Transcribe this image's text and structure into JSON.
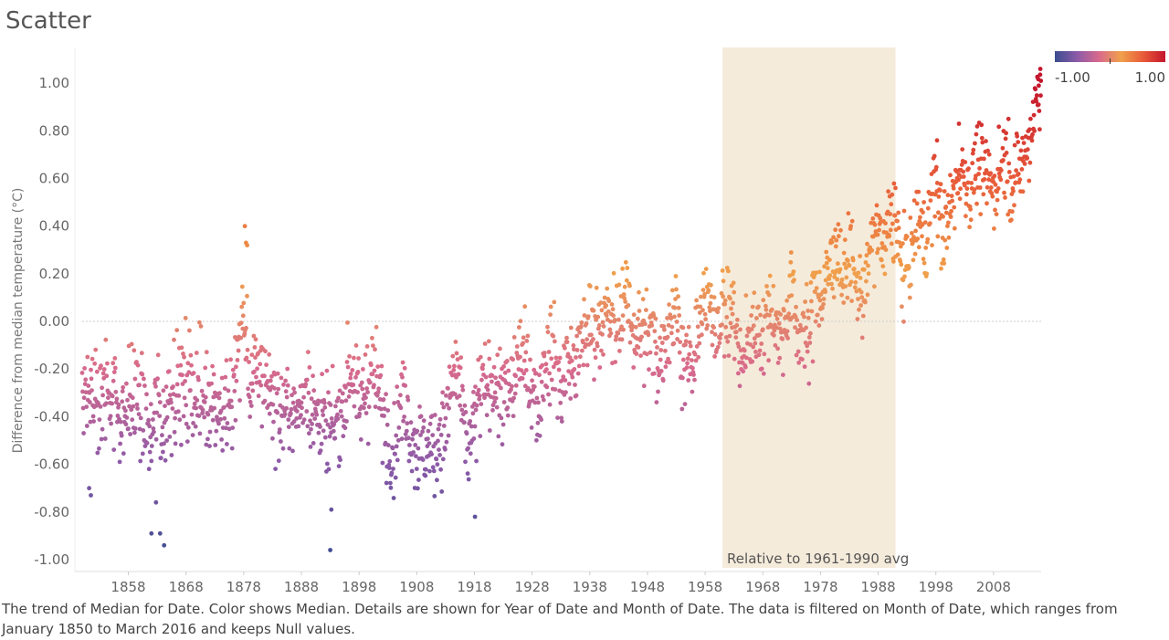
{
  "page": {
    "title": "Scatter",
    "caption": "The trend of Median for Date.  Color shows Median.  Details are shown for Year of Date and Month of Date. The data is filtered on Month of Date, which ranges from January 1850 to March 2016 and keeps Null values."
  },
  "chart_data": {
    "type": "scatter",
    "ylabel": "Difference from median temperature (°C)",
    "xlabel": "",
    "x_range": [
      1850.0,
      2016.25
    ],
    "ylim": [
      -1.05,
      1.15
    ],
    "y_ticks": [
      -1.0,
      -0.8,
      -0.6,
      -0.4,
      -0.2,
      0.0,
      0.2,
      0.4,
      0.6,
      0.8,
      1.0
    ],
    "y_tick_labels": [
      "-1.00",
      "-0.80",
      "-0.60",
      "-0.40",
      "-0.20",
      "0.00",
      "0.20",
      "0.40",
      "0.60",
      "0.80",
      "1.00"
    ],
    "x_ticks": [
      1858,
      1868,
      1878,
      1888,
      1898,
      1908,
      1918,
      1928,
      1938,
      1948,
      1958,
      1968,
      1978,
      1988,
      1998,
      2008
    ],
    "x_tick_labels": [
      "1858",
      "1868",
      "1878",
      "1888",
      "1898",
      "1908",
      "1918",
      "1928",
      "1938",
      "1948",
      "1958",
      "1968",
      "1978",
      "1988",
      "1998",
      "2008"
    ],
    "reference_line_y": 0.0,
    "reference_band": {
      "x_start": 1961,
      "x_end": 1991,
      "label": "Relative to 1961-1990 avg",
      "color": "#f5ebdb"
    },
    "legend": {
      "type": "color-gradient",
      "min_label": "-1.00",
      "max_label": "1.00",
      "colors": [
        "#3b4d8f",
        "#8c5aa8",
        "#d86a8c",
        "#f0a04b",
        "#e85a3a",
        "#c4152c"
      ],
      "placement": "top-right"
    },
    "color_field": "Median",
    "grid": false,
    "annual_trend": [
      [
        1850,
        -0.38
      ],
      [
        1851,
        -0.25
      ],
      [
        1852,
        -0.26
      ],
      [
        1853,
        -0.3
      ],
      [
        1854,
        -0.27
      ],
      [
        1855,
        -0.28
      ],
      [
        1856,
        -0.33
      ],
      [
        1857,
        -0.42
      ],
      [
        1858,
        -0.36
      ],
      [
        1859,
        -0.3
      ],
      [
        1860,
        -0.35
      ],
      [
        1861,
        -0.42
      ],
      [
        1862,
        -0.52
      ],
      [
        1863,
        -0.3
      ],
      [
        1864,
        -0.48
      ],
      [
        1865,
        -0.3
      ],
      [
        1866,
        -0.26
      ],
      [
        1867,
        -0.28
      ],
      [
        1868,
        -0.27
      ],
      [
        1869,
        -0.27
      ],
      [
        1870,
        -0.3
      ],
      [
        1871,
        -0.33
      ],
      [
        1872,
        -0.29
      ],
      [
        1873,
        -0.33
      ],
      [
        1874,
        -0.37
      ],
      [
        1875,
        -0.38
      ],
      [
        1876,
        -0.38
      ],
      [
        1877,
        -0.1
      ],
      [
        1878,
        0.02
      ],
      [
        1879,
        -0.25
      ],
      [
        1880,
        -0.24
      ],
      [
        1881,
        -0.2
      ],
      [
        1882,
        -0.26
      ],
      [
        1883,
        -0.3
      ],
      [
        1884,
        -0.4
      ],
      [
        1885,
        -0.38
      ],
      [
        1886,
        -0.34
      ],
      [
        1887,
        -0.41
      ],
      [
        1888,
        -0.34
      ],
      [
        1889,
        -0.22
      ],
      [
        1890,
        -0.41
      ],
      [
        1891,
        -0.37
      ],
      [
        1892,
        -0.46
      ],
      [
        1893,
        -0.47
      ],
      [
        1894,
        -0.42
      ],
      [
        1895,
        -0.4
      ],
      [
        1896,
        -0.22
      ],
      [
        1897,
        -0.2
      ],
      [
        1898,
        -0.39
      ],
      [
        1899,
        -0.28
      ],
      [
        1900,
        -0.2
      ],
      [
        1901,
        -0.25
      ],
      [
        1902,
        -0.37
      ],
      [
        1903,
        -0.48
      ],
      [
        1904,
        -0.54
      ],
      [
        1905,
        -0.37
      ],
      [
        1906,
        -0.31
      ],
      [
        1907,
        -0.48
      ],
      [
        1908,
        -0.51
      ],
      [
        1909,
        -0.54
      ],
      [
        1910,
        -0.52
      ],
      [
        1911,
        -0.55
      ],
      [
        1912,
        -0.47
      ],
      [
        1913,
        -0.45
      ],
      [
        1914,
        -0.27
      ],
      [
        1915,
        -0.19
      ],
      [
        1916,
        -0.42
      ],
      [
        1917,
        -0.55
      ],
      [
        1918,
        -0.42
      ],
      [
        1919,
        -0.3
      ],
      [
        1920,
        -0.29
      ],
      [
        1921,
        -0.21
      ],
      [
        1922,
        -0.3
      ],
      [
        1923,
        -0.3
      ],
      [
        1924,
        -0.33
      ],
      [
        1925,
        -0.23
      ],
      [
        1926,
        -0.12
      ],
      [
        1927,
        -0.22
      ],
      [
        1928,
        -0.24
      ],
      [
        1929,
        -0.38
      ],
      [
        1930,
        -0.18
      ],
      [
        1931,
        -0.12
      ],
      [
        1932,
        -0.15
      ],
      [
        1933,
        -0.3
      ],
      [
        1934,
        -0.15
      ],
      [
        1935,
        -0.2
      ],
      [
        1936,
        -0.16
      ],
      [
        1937,
        -0.04
      ],
      [
        1938,
        -0.03
      ],
      [
        1939,
        -0.02
      ],
      [
        1940,
        0.02
      ],
      [
        1941,
        0.01
      ],
      [
        1942,
        -0.02
      ],
      [
        1943,
        -0.02
      ],
      [
        1944,
        0.12
      ],
      [
        1945,
        0.02
      ],
      [
        1946,
        -0.05
      ],
      [
        1947,
        -0.05
      ],
      [
        1948,
        -0.06
      ],
      [
        1949,
        -0.08
      ],
      [
        1950,
        -0.17
      ],
      [
        1951,
        -0.07
      ],
      [
        1952,
        0.01
      ],
      [
        1953,
        0.07
      ],
      [
        1954,
        -0.14
      ],
      [
        1955,
        -0.17
      ],
      [
        1956,
        -0.21
      ],
      [
        1957,
        0.03
      ],
      [
        1958,
        0.07
      ],
      [
        1959,
        0.04
      ],
      [
        1960,
        0.0
      ],
      [
        1961,
        0.05
      ],
      [
        1962,
        0.03
      ],
      [
        1963,
        0.05
      ],
      [
        1964,
        -0.2
      ],
      [
        1965,
        -0.11
      ],
      [
        1966,
        -0.05
      ],
      [
        1967,
        -0.02
      ],
      [
        1968,
        -0.06
      ],
      [
        1969,
        0.06
      ],
      [
        1970,
        0.03
      ],
      [
        1971,
        -0.08
      ],
      [
        1972,
        0.01
      ],
      [
        1973,
        0.16
      ],
      [
        1974,
        -0.07
      ],
      [
        1975,
        -0.01
      ],
      [
        1976,
        -0.1
      ],
      [
        1977,
        0.18
      ],
      [
        1978,
        0.07
      ],
      [
        1979,
        0.16
      ],
      [
        1980,
        0.26
      ],
      [
        1981,
        0.32
      ],
      [
        1982,
        0.14
      ],
      [
        1983,
        0.31
      ],
      [
        1984,
        0.16
      ],
      [
        1985,
        0.12
      ],
      [
        1986,
        0.18
      ],
      [
        1987,
        0.33
      ],
      [
        1988,
        0.4
      ],
      [
        1989,
        0.27
      ],
      [
        1990,
        0.45
      ],
      [
        1991,
        0.41
      ],
      [
        1992,
        0.22
      ],
      [
        1993,
        0.23
      ],
      [
        1994,
        0.31
      ],
      [
        1995,
        0.45
      ],
      [
        1996,
        0.33
      ],
      [
        1997,
        0.46
      ],
      [
        1998,
        0.61
      ],
      [
        1999,
        0.38
      ],
      [
        2000,
        0.39
      ],
      [
        2001,
        0.54
      ],
      [
        2002,
        0.63
      ],
      [
        2003,
        0.62
      ],
      [
        2004,
        0.54
      ],
      [
        2005,
        0.68
      ],
      [
        2006,
        0.61
      ],
      [
        2007,
        0.61
      ],
      [
        2008,
        0.54
      ],
      [
        2009,
        0.64
      ],
      [
        2010,
        0.72
      ],
      [
        2011,
        0.58
      ],
      [
        2012,
        0.62
      ],
      [
        2013,
        0.66
      ],
      [
        2014,
        0.74
      ],
      [
        2015,
        0.87
      ],
      [
        2016,
        1.02
      ]
    ],
    "extreme_points": [
      [
        1851.2,
        -0.7
      ],
      [
        1851.5,
        -0.73
      ],
      [
        1863.5,
        -0.89
      ],
      [
        1864.2,
        -0.94
      ],
      [
        1862.8,
        -0.76
      ],
      [
        1862.0,
        -0.89
      ],
      [
        1878.2,
        0.4
      ],
      [
        1878.4,
        0.33
      ],
      [
        1878.6,
        0.32
      ],
      [
        1893.0,
        -0.96
      ],
      [
        1893.2,
        -0.79
      ],
      [
        1918.1,
        -0.82
      ],
      [
        2016.1,
        1.06
      ],
      [
        2016.2,
        1.01
      ],
      [
        2015.8,
        0.91
      ],
      [
        2002.0,
        0.83
      ],
      [
        1991.0,
        0.56
      ],
      [
        1998.2,
        0.76
      ]
    ]
  }
}
